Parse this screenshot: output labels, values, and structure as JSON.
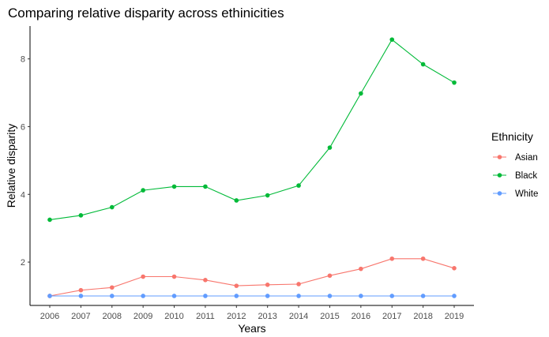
{
  "chart_data": {
    "type": "line",
    "title": "Comparing relative disparity across ethinicities",
    "xlabel": "Years",
    "ylabel": "Relative disparity",
    "x": [
      "2006",
      "2007",
      "2008",
      "2009",
      "2010",
      "2011",
      "2012",
      "2013",
      "2014",
      "2015",
      "2016",
      "2017",
      "2018",
      "2019"
    ],
    "yticks": [
      2,
      4,
      6,
      8
    ],
    "ylim": [
      0.72,
      8.97
    ],
    "grid": false,
    "legend": {
      "title": "Ethnicity",
      "position": "right"
    },
    "series": [
      {
        "name": "Asian",
        "color": "#F8766D",
        "values": [
          1.0,
          1.17,
          1.25,
          1.57,
          1.57,
          1.47,
          1.3,
          1.33,
          1.35,
          1.6,
          1.8,
          2.1,
          2.1,
          1.82
        ]
      },
      {
        "name": "Black",
        "color": "#00BA38",
        "values": [
          3.25,
          3.38,
          3.62,
          4.12,
          4.23,
          4.23,
          3.82,
          3.97,
          4.26,
          5.38,
          6.98,
          8.57,
          7.84,
          7.3
        ]
      },
      {
        "name": "White",
        "color": "#619CFF",
        "values": [
          1.0,
          1.0,
          1.0,
          1.0,
          1.0,
          1.0,
          1.0,
          1.0,
          1.0,
          1.0,
          1.0,
          1.0,
          1.0,
          1.0
        ]
      }
    ]
  }
}
